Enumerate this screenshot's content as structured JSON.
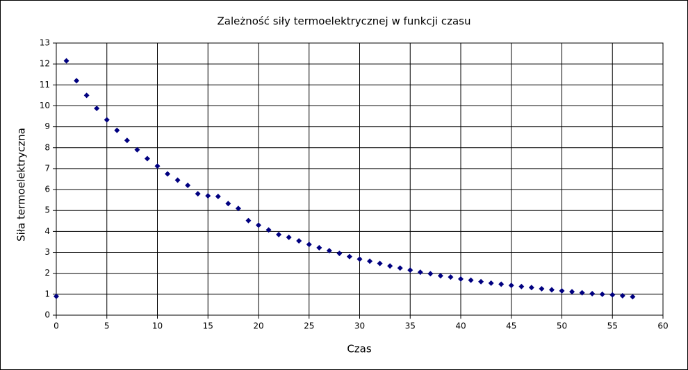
{
  "chart_data": {
    "type": "scatter",
    "title": "Zależność siły termoelektrycznej w funkcji czasu",
    "x_label": "Czas",
    "y_label": "Siła termoelektryczna",
    "series": [
      {
        "name": "Siła termoelektryczna",
        "color": "#000080",
        "x": [
          0,
          1,
          2,
          3,
          4,
          5,
          6,
          7,
          8,
          9,
          10,
          11,
          12,
          13,
          14,
          15,
          16,
          17,
          18,
          19,
          20,
          21,
          22,
          23,
          24,
          25,
          26,
          27,
          28,
          29,
          30,
          31,
          32,
          33,
          34,
          35,
          36,
          37,
          38,
          39,
          40,
          41,
          42,
          43,
          44,
          45,
          46,
          47,
          48,
          49,
          50,
          51,
          52,
          53,
          54,
          55,
          56,
          57
        ],
        "values": [
          0.9,
          12.15,
          11.2,
          10.5,
          9.88,
          9.33,
          8.83,
          8.35,
          7.9,
          7.48,
          7.12,
          6.75,
          6.45,
          6.2,
          5.8,
          5.7,
          5.67,
          5.33,
          5.1,
          4.52,
          4.3,
          4.07,
          3.85,
          3.72,
          3.55,
          3.38,
          3.22,
          3.08,
          2.95,
          2.8,
          2.68,
          2.58,
          2.47,
          2.35,
          2.25,
          2.15,
          2.05,
          1.98,
          1.88,
          1.82,
          1.73,
          1.67,
          1.6,
          1.53,
          1.48,
          1.42,
          1.37,
          1.32,
          1.26,
          1.21,
          1.16,
          1.12,
          1.07,
          1.03,
          1.0,
          0.97,
          0.93,
          0.88
        ]
      }
    ],
    "xlim": [
      0,
      60
    ],
    "xticks": [
      0,
      5,
      10,
      15,
      20,
      25,
      30,
      35,
      40,
      45,
      50,
      55,
      60
    ],
    "ylim": [
      0,
      13
    ],
    "yticks": [
      0,
      1,
      2,
      3,
      4,
      5,
      6,
      7,
      8,
      9,
      10,
      11,
      12,
      13
    ],
    "grid": true
  }
}
